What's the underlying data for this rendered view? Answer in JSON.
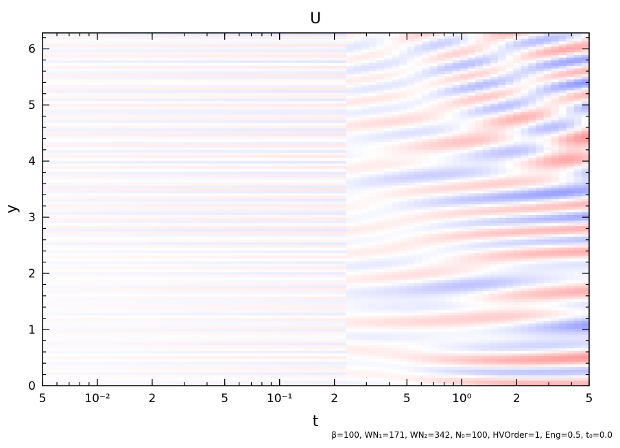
{
  "chart_data": {
    "type": "heatmap",
    "title": "U",
    "xlabel": "t",
    "ylabel": "y",
    "x_scale": "log",
    "xlim": [
      0.005,
      5
    ],
    "ylim": [
      0,
      6.283
    ],
    "x_ticks": [
      {
        "value": 0.005,
        "label": "5"
      },
      {
        "value": 0.01,
        "label": "10⁻²"
      },
      {
        "value": 0.02,
        "label": "2"
      },
      {
        "value": 0.05,
        "label": "5"
      },
      {
        "value": 0.1,
        "label": "10⁻¹"
      },
      {
        "value": 0.2,
        "label": "2"
      },
      {
        "value": 0.5,
        "label": "5"
      },
      {
        "value": 1,
        "label": "10⁰"
      },
      {
        "value": 2,
        "label": "2"
      },
      {
        "value": 5,
        "label": "5"
      }
    ],
    "y_ticks": [
      {
        "value": 0,
        "label": "0"
      },
      {
        "value": 1,
        "label": "1"
      },
      {
        "value": 2,
        "label": "2"
      },
      {
        "value": 3,
        "label": "3"
      },
      {
        "value": 4,
        "label": "4"
      },
      {
        "value": 5,
        "label": "5"
      },
      {
        "value": 6,
        "label": "6"
      }
    ],
    "colormap": {
      "negative": "#6f78ff",
      "zero": "#ffffff",
      "positive": "#ff7a7a"
    },
    "grid": false,
    "legend": "none",
    "caption": "β=100, WN₁=171, WN₂=342, N₀=100, HVOrder=1, Eng=0.5, t₀=0.0"
  }
}
